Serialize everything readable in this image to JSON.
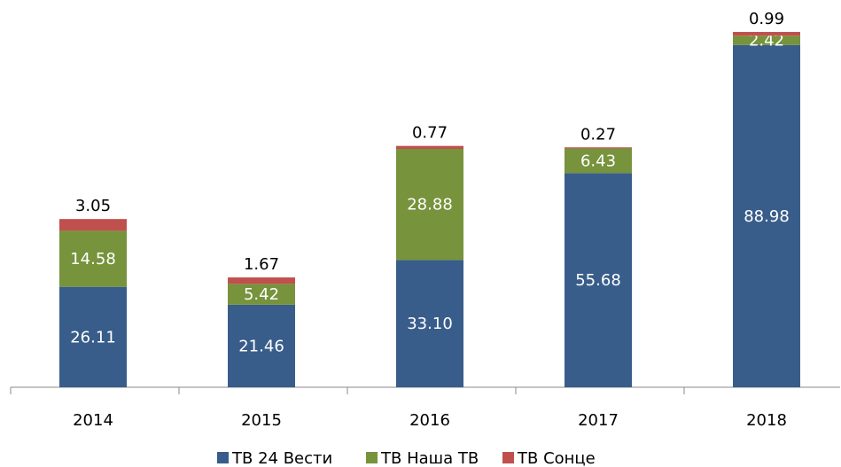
{
  "chart_data": {
    "type": "stacked_bar",
    "categories": [
      "2014",
      "2015",
      "2016",
      "2017",
      "2018"
    ],
    "series": [
      {
        "name": "ТВ 24 Вести",
        "color": "#385d8a",
        "values": [
          26.11,
          21.46,
          33.1,
          55.68,
          88.98
        ],
        "value_labels": [
          "26.11",
          "21.46",
          "33.10",
          "55.68",
          "88.98"
        ]
      },
      {
        "name": "ТВ Наша ТВ",
        "color": "#77933c",
        "values": [
          14.58,
          5.42,
          28.88,
          6.43,
          2.42
        ]
      },
      {
        "name": "ТВ Сонце",
        "color": "#c0504d",
        "values": [
          3.05,
          1.67,
          0.77,
          0.27,
          0.99
        ]
      }
    ],
    "ylim": [
      0,
      100
    ]
  }
}
